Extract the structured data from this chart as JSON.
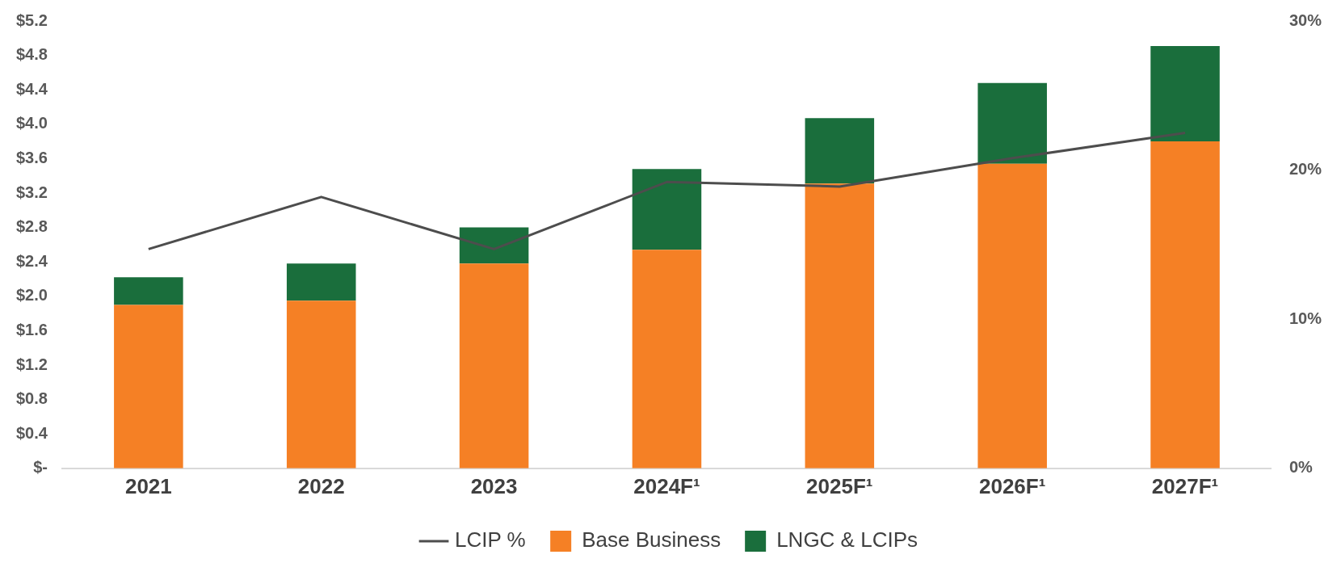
{
  "chart_data": {
    "type": "bar",
    "stacked": true,
    "categories": [
      "2021",
      "2022",
      "2023",
      "2024F¹",
      "2025F¹",
      "2026F¹",
      "2027F¹"
    ],
    "series": [
      {
        "name": "Base Business",
        "color": "#f58025",
        "values": [
          1.9,
          1.95,
          2.38,
          2.54,
          3.31,
          3.54,
          3.8
        ]
      },
      {
        "name": "LNGC & LCIPs",
        "color": "#1a6e3c",
        "values": [
          0.32,
          0.43,
          0.42,
          0.94,
          0.76,
          0.94,
          1.11
        ]
      },
      {
        "name": "LCIP %",
        "type": "line",
        "axis": "y2",
        "color": "#4d4d4d",
        "values": [
          14.7,
          18.2,
          14.7,
          19.2,
          18.9,
          20.8,
          22.5
        ]
      }
    ],
    "ylim": [
      0,
      5.2
    ],
    "yticks": [
      {
        "value": 0,
        "label": "$-"
      },
      {
        "value": 0.4,
        "label": "$0.4"
      },
      {
        "value": 0.8,
        "label": "$0.8"
      },
      {
        "value": 1.2,
        "label": "$1.2"
      },
      {
        "value": 1.6,
        "label": "$1.6"
      },
      {
        "value": 2.0,
        "label": "$2.0"
      },
      {
        "value": 2.4,
        "label": "$2.4"
      },
      {
        "value": 2.8,
        "label": "$2.8"
      },
      {
        "value": 3.2,
        "label": "$3.2"
      },
      {
        "value": 3.6,
        "label": "$3.6"
      },
      {
        "value": 4.0,
        "label": "$4.0"
      },
      {
        "value": 4.4,
        "label": "$4.4"
      },
      {
        "value": 4.8,
        "label": "$4.8"
      },
      {
        "value": 5.2,
        "label": "$5.2"
      }
    ],
    "y2lim": [
      0,
      30
    ],
    "y2ticks": [
      {
        "value": 0,
        "label": "0%"
      },
      {
        "value": 10,
        "label": "10%"
      },
      {
        "value": 20,
        "label": "20%"
      },
      {
        "value": 30,
        "label": "30%"
      }
    ],
    "grid": false,
    "legend": "bottom",
    "marker": "none",
    "line_style": "solid"
  }
}
